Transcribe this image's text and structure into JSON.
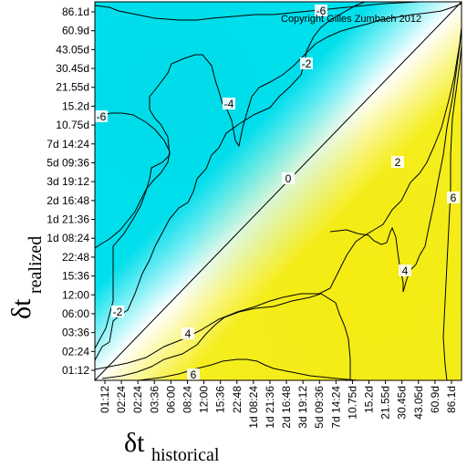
{
  "chart_data": {
    "type": "heatmap",
    "x_axis": {
      "label_main": "δt",
      "label_sub": "historical",
      "ticks": [
        "01:12",
        "02:24",
        "02:24",
        "03:36",
        "06:00",
        "08:24",
        "12:00",
        "15:36",
        "22:48",
        "1d 08:24",
        "1d 21:36",
        "2d 16:48",
        "3d 19:12",
        "5d 09:36",
        "7d 14:24",
        "10.75d",
        "15.2d",
        "21.55d",
        "30.45d",
        "43.05d",
        "60.9d",
        "86.1d"
      ]
    },
    "y_axis": {
      "label_main": "δt",
      "label_sub": "realized",
      "ticks": [
        "01:12",
        "02:24",
        "03:36",
        "06:00",
        "12:00",
        "15:36",
        "22:48",
        "1d 08:24",
        "1d 21:36",
        "2d 16:48",
        "3d 19:12",
        "5d 09:36",
        "7d 14:24",
        "10.75d",
        "15.2d",
        "21.55d",
        "30.45d",
        "43.05d",
        "60.9d",
        "86.1d"
      ]
    },
    "contour_labels": [
      "-6",
      "-6",
      "-4",
      "-2",
      "-2",
      "0",
      "2",
      "4",
      "4",
      "6",
      "6"
    ],
    "copyright": "Copyright Gilles Zumbach 2012",
    "colors": {
      "negative": "#00e0ec",
      "zero": "#ffffff",
      "positive": "#f5ee20",
      "contour": "#000000"
    }
  }
}
